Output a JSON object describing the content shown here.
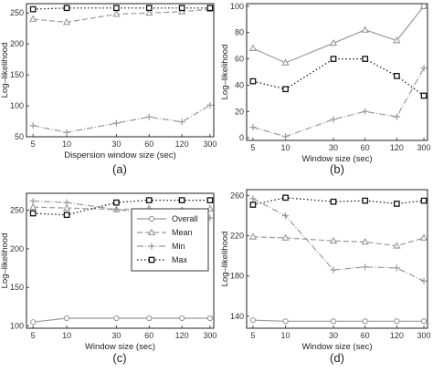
{
  "chart_data": [
    {
      "type": "line",
      "panel_label": "(a)",
      "xlabel": "Dispersion window size (sec)",
      "ylabel": "Log–likelihood",
      "categories": [
        "5",
        "10",
        "30",
        "60",
        "120",
        "300"
      ],
      "ylim": [
        50,
        265
      ],
      "yticks": [
        50,
        100,
        150,
        200,
        250
      ],
      "grid": false,
      "series": [
        {
          "key": "mean",
          "values": [
            240,
            235,
            248,
            250,
            252,
            256
          ],
          "color": "#999999",
          "dash": "6,3",
          "marker": "triangle"
        },
        {
          "key": "min",
          "values": [
            68,
            57,
            72,
            82,
            74,
            101
          ],
          "color": "#999999",
          "dash": "7,2,1,2",
          "marker": "plus"
        },
        {
          "key": "max",
          "values": [
            256,
            258,
            258,
            258,
            258,
            258
          ],
          "color": "#111111",
          "dash": "1.5,2.5",
          "marker": "square"
        }
      ]
    },
    {
      "type": "line",
      "panel_label": "(b)",
      "xlabel": "Window size (sec)",
      "ylabel": "Log–likelihood",
      "categories": [
        "5",
        "10",
        "30",
        "60",
        "120",
        "300"
      ],
      "ylim": [
        -2,
        102
      ],
      "yticks": [
        0,
        20,
        40,
        60,
        80,
        100
      ],
      "grid": false,
      "series": [
        {
          "key": "mean",
          "values": [
            68,
            57,
            72,
            82,
            74,
            100
          ],
          "color": "#999999",
          "dash": "",
          "marker": "triangle"
        },
        {
          "key": "min",
          "values": [
            8,
            1,
            14,
            20,
            16,
            53
          ],
          "color": "#999999",
          "dash": "7,2,1,2",
          "marker": "plus"
        },
        {
          "key": "max",
          "values": [
            43,
            37,
            60,
            60,
            47,
            32
          ],
          "color": "#111111",
          "dash": "1.5,2.5",
          "marker": "square"
        },
        {
          "key": "overall",
          "values": [
            null,
            null,
            null,
            null,
            null,
            100
          ],
          "color": "#999999",
          "dash": "",
          "marker": "circle"
        }
      ]
    },
    {
      "type": "line",
      "panel_label": "(c)",
      "xlabel": "Window size (sec)",
      "ylabel": "Log–likelihood",
      "categories": [
        "5",
        "10",
        "30",
        "60",
        "120",
        "300"
      ],
      "ylim": [
        97,
        272
      ],
      "yticks": [
        100,
        150,
        200,
        250
      ],
      "grid": false,
      "legend": {
        "placement": "right",
        "entries": [
          "Overall",
          "Mean",
          "Min",
          "Max"
        ]
      },
      "series": [
        {
          "key": "overall",
          "values": [
            105,
            110,
            110,
            110,
            110,
            110
          ],
          "color": "#999999",
          "dash": "",
          "marker": "circle"
        },
        {
          "key": "mean",
          "values": [
            254,
            253,
            251,
            252,
            250,
            252
          ],
          "color": "#999999",
          "dash": "6,3",
          "marker": "triangle"
        },
        {
          "key": "min",
          "values": [
            262,
            260,
            251,
            246,
            244,
            240
          ],
          "color": "#999999",
          "dash": "7,2,1,2",
          "marker": "plus"
        },
        {
          "key": "max",
          "values": [
            246,
            244,
            260,
            263,
            263,
            263
          ],
          "color": "#111111",
          "dash": "1.5,2.5",
          "marker": "square"
        }
      ]
    },
    {
      "type": "line",
      "panel_label": "(d)",
      "xlabel": "Window size (sec)",
      "ylabel": "Log–likelihood",
      "categories": [
        "5",
        "10",
        "30",
        "60",
        "120",
        "300"
      ],
      "ylim": [
        128,
        266
      ],
      "yticks": [
        140,
        180,
        220,
        260
      ],
      "grid": false,
      "series": [
        {
          "key": "overall",
          "values": [
            136,
            135,
            135,
            135,
            135,
            135
          ],
          "color": "#999999",
          "dash": "",
          "marker": "circle"
        },
        {
          "key": "mean",
          "values": [
            219,
            218,
            215,
            214,
            210,
            218
          ],
          "color": "#999999",
          "dash": "6,3",
          "marker": "triangle"
        },
        {
          "key": "min",
          "values": [
            257,
            240,
            186,
            189,
            188,
            175
          ],
          "color": "#999999",
          "dash": "7,2,1,2",
          "marker": "plus"
        },
        {
          "key": "max",
          "values": [
            251,
            258,
            254,
            255,
            252,
            255
          ],
          "color": "#111111",
          "dash": "1.5,2.5",
          "marker": "square"
        }
      ]
    }
  ]
}
